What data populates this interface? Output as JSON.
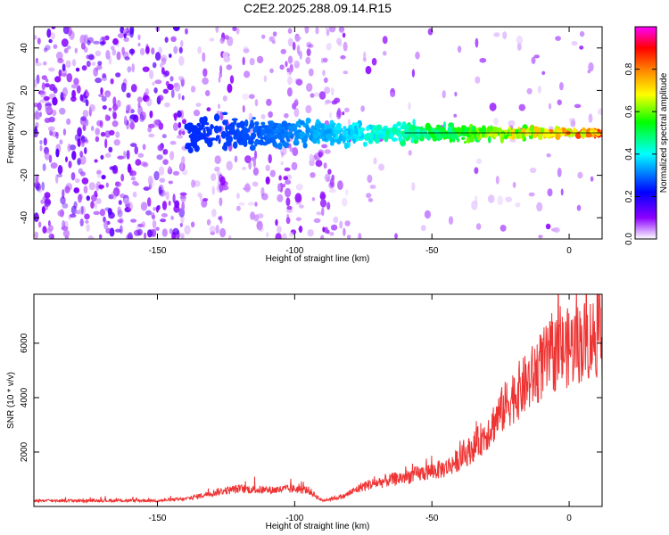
{
  "figure_title": "C2E2.2025.288.09.14.R15",
  "chart_data": [
    {
      "type": "heatmap",
      "title": "C2E2.2025.288.09.14.R15",
      "xlabel": "Height of straight line (km)",
      "ylabel": "Frequency (Hz)",
      "xlim": [
        -195,
        12
      ],
      "ylim": [
        -50,
        50
      ],
      "xticks": [
        -150,
        -100,
        -50,
        0
      ],
      "yticks": [
        -40,
        -20,
        0,
        20,
        40
      ],
      "colorbar": {
        "label": "Normalized spectral amplitude",
        "range": [
          0,
          1
        ],
        "ticks": [
          "0.0",
          "0.2",
          "0.4",
          "0.6",
          "0.8"
        ],
        "colors": [
          "#ffffff",
          "#8b00ff",
          "#0000ff",
          "#00ffff",
          "#00ff00",
          "#ffff00",
          "#ff8000",
          "#ff0000",
          "#ff00ff"
        ]
      },
      "carrier": {
        "frequency_hz": 0,
        "x_start_km": -140,
        "x_end_km": 12,
        "amplitude_start": 0.25,
        "amplitude_end": 0.95
      },
      "bright_stripes_km": [
        -126,
        -100,
        -88
      ]
    },
    {
      "type": "line",
      "series": [
        {
          "name": "SNR",
          "color": "#ee3333",
          "profile": {
            "x": [
              -195,
              -150,
              -140,
              -135,
              -128,
              -120,
              -110,
              -100,
              -95,
              -90,
              -82,
              -75,
              -65,
              -55,
              -45,
              -40,
              -35,
              -30,
              -25,
              -20,
              -15,
              -10,
              -5,
              0,
              5,
              10,
              12
            ],
            "y": [
              200,
              200,
              250,
              350,
              500,
              600,
              550,
              600,
              550,
              200,
              350,
              700,
              900,
              1100,
              1300,
              1600,
              2000,
              2500,
              3200,
              3800,
              4200,
              4800,
              5200,
              5400,
              5600,
              5800,
              5200
            ]
          }
        }
      ],
      "xlabel": "Height of straight line (km)",
      "ylabel": "SNR (10 * v/v)",
      "xlim": [
        -195,
        12
      ],
      "ylim": [
        0,
        7800
      ],
      "xticks": [
        -150,
        -100,
        -50,
        0
      ],
      "yticks": [
        2000,
        4000,
        6000
      ]
    }
  ]
}
